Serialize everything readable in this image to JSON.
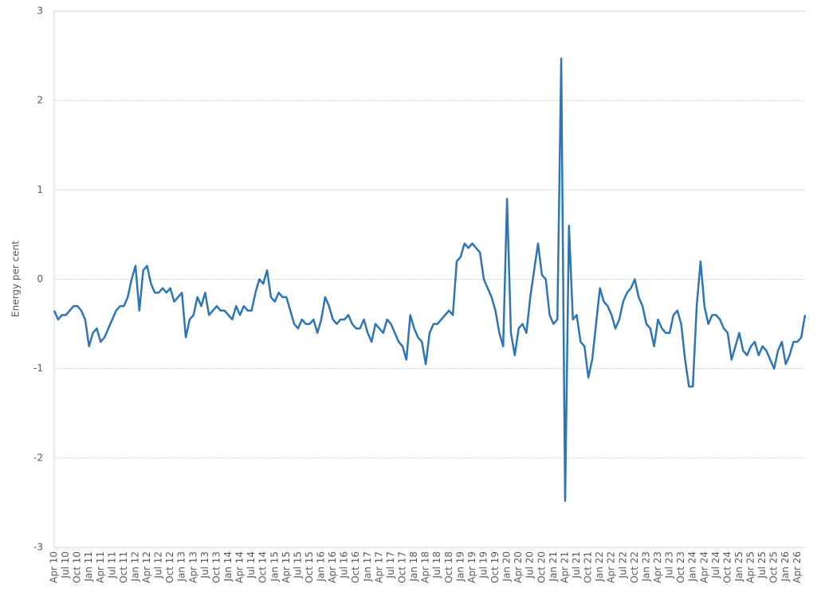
{
  "chart_data": {
    "type": "line",
    "y_label": "Energy per cent",
    "categories": [
      "Apr 10",
      null,
      null,
      "Jul 10",
      null,
      null,
      "Oct 10",
      null,
      null,
      "Jan 11",
      null,
      null,
      "Apr 11",
      null,
      null,
      "Jul 11",
      null,
      null,
      "Oct 11",
      null,
      null,
      "Jan 12",
      null,
      null,
      "Apr 12",
      null,
      null,
      "Jul 12",
      null,
      null,
      "Oct 12",
      null,
      null,
      "Jan 13",
      null,
      null,
      "Apr 13",
      null,
      null,
      "Jul 13",
      null,
      null,
      "Oct 13",
      null,
      null,
      "Jan 14",
      null,
      null,
      "Apr 14",
      null,
      null,
      "Jul 14",
      null,
      null,
      "Oct 14",
      null,
      null,
      "Jan 15",
      null,
      null,
      "Apr 15",
      null,
      null,
      "Jul 15",
      null,
      null,
      "Oct 15",
      null,
      null,
      "Jan 16",
      null,
      null,
      "Apr 16",
      null,
      null,
      "Jul 16",
      null,
      null,
      "Oct 16",
      null,
      null,
      "Jan 17",
      null,
      null,
      "Apr 17",
      null,
      null,
      "Jul 17",
      null,
      null,
      "Oct 17",
      null,
      null,
      "Jan 18",
      null,
      null,
      "Apr 18",
      null,
      null,
      "Jul 18",
      null,
      null,
      "Oct 18",
      null,
      null,
      "Jan 19",
      null,
      null,
      "Apr 19",
      null,
      null,
      "Jul 19",
      null,
      null,
      "Oct 19",
      null,
      null,
      "Jan 20",
      null,
      null,
      "Apr 20",
      null,
      null,
      "Jul 20",
      null,
      null,
      "Oct 20",
      null,
      null,
      "Jan 21",
      null,
      null,
      "Apr 21",
      null,
      null,
      "Jul 21",
      null,
      null,
      "Oct 21",
      null,
      null,
      "Jan 22",
      null,
      null,
      "Apr 22",
      null,
      null,
      "Jul 22",
      null,
      null,
      "Oct 22",
      null,
      null,
      "Jan 23",
      null,
      null,
      "Apr 23",
      null,
      null,
      "Jul 23",
      null,
      null,
      "Oct 23",
      null,
      null,
      "Jan 24",
      null,
      null,
      "Apr 24",
      null,
      null,
      "Jul 24",
      null,
      null,
      "Oct 24",
      null,
      null,
      "Jan 25",
      null,
      null,
      "Apr 25",
      null,
      null,
      "Jul 25",
      null,
      null,
      "Oct 25",
      null,
      null,
      "Jan 26",
      null,
      null,
      "Apr 26",
      null,
      null
    ],
    "values": [
      -0.35,
      -0.45,
      -0.4,
      -0.4,
      -0.35,
      -0.3,
      -0.3,
      -0.35,
      -0.45,
      -0.75,
      -0.6,
      -0.55,
      -0.7,
      -0.65,
      -0.55,
      -0.45,
      -0.35,
      -0.3,
      -0.3,
      -0.2,
      0.0,
      0.15,
      -0.35,
      0.1,
      0.15,
      -0.05,
      -0.15,
      -0.15,
      -0.1,
      -0.15,
      -0.1,
      -0.25,
      -0.2,
      -0.15,
      -0.65,
      -0.45,
      -0.4,
      -0.2,
      -0.3,
      -0.15,
      -0.4,
      -0.35,
      -0.3,
      -0.35,
      -0.35,
      -0.4,
      -0.45,
      -0.3,
      -0.4,
      -0.3,
      -0.35,
      -0.35,
      -0.15,
      0.0,
      -0.05,
      0.1,
      -0.2,
      -0.25,
      -0.15,
      -0.2,
      -0.2,
      -0.35,
      -0.5,
      -0.55,
      -0.45,
      -0.5,
      -0.5,
      -0.45,
      -0.6,
      -0.45,
      -0.2,
      -0.3,
      -0.45,
      -0.5,
      -0.45,
      -0.45,
      -0.4,
      -0.5,
      -0.55,
      -0.55,
      -0.45,
      -0.6,
      -0.7,
      -0.5,
      -0.55,
      -0.6,
      -0.45,
      -0.5,
      -0.6,
      -0.7,
      -0.75,
      -0.9,
      -0.4,
      -0.55,
      -0.65,
      -0.7,
      -0.95,
      -0.6,
      -0.5,
      -0.5,
      -0.45,
      -0.4,
      -0.35,
      -0.4,
      0.2,
      0.25,
      0.4,
      0.35,
      0.4,
      0.35,
      0.3,
      0.0,
      -0.1,
      -0.2,
      -0.35,
      -0.6,
      -0.75,
      0.9,
      -0.6,
      -0.85,
      -0.55,
      -0.5,
      -0.6,
      -0.2,
      0.1,
      0.4,
      0.05,
      0.0,
      -0.4,
      -0.5,
      -0.45,
      2.47,
      -2.48,
      0.6,
      -0.45,
      -0.4,
      -0.7,
      -0.75,
      -1.1,
      -0.9,
      -0.5,
      -0.1,
      -0.25,
      -0.3,
      -0.4,
      -0.55,
      -0.45,
      -0.25,
      -0.15,
      -0.1,
      0.0,
      -0.2,
      -0.3,
      -0.5,
      -0.55,
      -0.75,
      -0.45,
      -0.55,
      -0.6,
      -0.6,
      -0.4,
      -0.35,
      -0.5,
      -0.9,
      -1.2,
      -1.2,
      -0.3,
      0.2,
      -0.3,
      -0.5,
      -0.4,
      -0.4,
      -0.45,
      -0.55,
      -0.6,
      -0.9,
      -0.75,
      -0.6,
      -0.8,
      -0.85,
      -0.75,
      -0.7,
      -0.85,
      -0.75,
      -0.8,
      -0.9,
      -1.0,
      -0.8,
      -0.7,
      -0.95,
      -0.85,
      -0.7,
      -0.7,
      -0.65,
      -0.4
    ],
    "color": "#2e75b6",
    "ylim": [
      -3,
      3
    ],
    "yticks": [
      -3,
      -2,
      -1,
      0,
      1,
      2,
      3
    ],
    "grid": true
  }
}
